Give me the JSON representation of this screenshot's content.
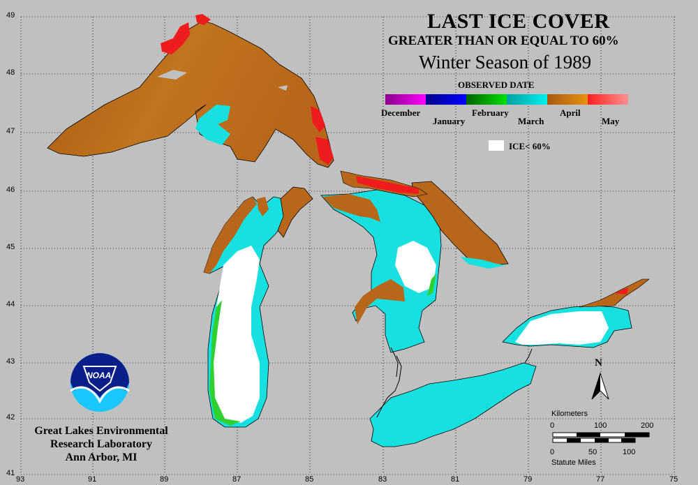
{
  "title": {
    "line1": "LAST ICE COVER",
    "line2": "GREATER THAN OR EQUAL TO 60%",
    "line3": "Winter Season of 1989"
  },
  "legend": {
    "heading": "OBSERVED DATE",
    "months": [
      {
        "label": "December",
        "color_a": "#8b008b",
        "color_b": "#ff00ff"
      },
      {
        "label": "January",
        "color_a": "#00008b",
        "color_b": "#0000ff"
      },
      {
        "label": "February",
        "color_a": "#006400",
        "color_b": "#00e000"
      },
      {
        "label": "March",
        "color_a": "#00a0a0",
        "color_b": "#00f0f0"
      },
      {
        "label": "April",
        "color_a": "#a85a10",
        "color_b": "#e89010"
      },
      {
        "label": "May",
        "color_a": "#ff2020",
        "color_b": "#ff9090"
      }
    ],
    "no_ice_label": "ICE< 60%",
    "no_ice_color": "#ffffff"
  },
  "lat_labels": [
    "49",
    "48",
    "47",
    "46",
    "45",
    "44",
    "43",
    "42",
    "41"
  ],
  "lon_labels": [
    "93",
    "91",
    "89",
    "87",
    "85",
    "83",
    "81",
    "79",
    "77",
    "75"
  ],
  "organization": {
    "line1": "Great Lakes Environmental",
    "line2": "Research Laboratory",
    "line3": "Ann Arbor, MI",
    "logo_text": "NOAA"
  },
  "scale": {
    "km_label": "Kilometers",
    "km_ticks": [
      "0",
      "100",
      "200"
    ],
    "mi_label": "Statute Miles",
    "mi_ticks": [
      "0",
      "50",
      "100"
    ]
  },
  "north_label": "N",
  "colors": {
    "background": "#c0c0c0",
    "april": "#b8661a",
    "march": "#18e0e0",
    "may": "#ee1c1c",
    "february": "#30d030",
    "no_ice": "#ffffff"
  }
}
